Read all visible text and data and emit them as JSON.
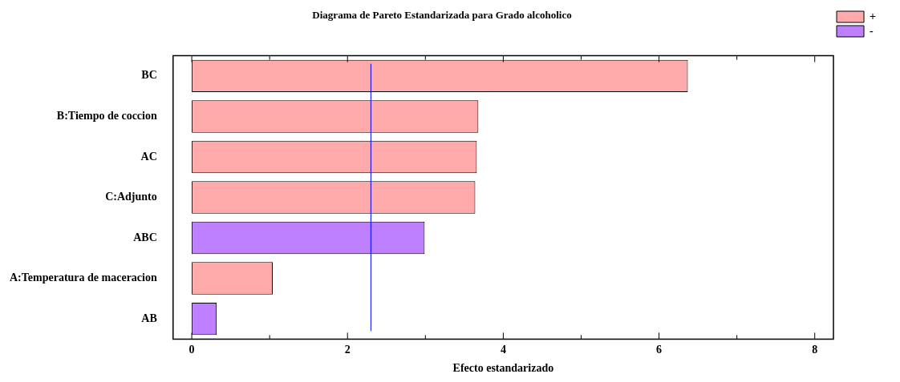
{
  "chart_data": {
    "type": "bar",
    "orientation": "horizontal",
    "stacked": true,
    "title": "Diagrama de Pareto Estandarizada para Grado alcoholico",
    "xlabel": "Efecto estandarizado",
    "categories": [
      "BC",
      "B:Tiempo de coccion",
      "AC",
      "C:Adjunto",
      "ABC",
      "A:Temperatura de maceracion",
      "AB"
    ],
    "series": [
      {
        "name": "+",
        "color": "#ffaaaa",
        "values": [
          6.37,
          3.68,
          3.66,
          3.64,
          null,
          1.04,
          null
        ]
      },
      {
        "name": "-",
        "color": "#bf80ff",
        "values": [
          null,
          null,
          null,
          null,
          2.99,
          null,
          0.32
        ]
      }
    ],
    "xlim": [
      -0.24,
      8.24
    ],
    "xticks": [
      0,
      {
        "value": 1,
        "label": null
      },
      2,
      {
        "value": 3,
        "label": null
      },
      4,
      {
        "value": 5,
        "label": null
      },
      6,
      {
        "value": 7,
        "label": null
      },
      8
    ],
    "ref_lines": [
      {
        "axis": "x",
        "value": 2.3,
        "color": "#0000ff"
      }
    ],
    "grid": false,
    "legend": "top right"
  }
}
